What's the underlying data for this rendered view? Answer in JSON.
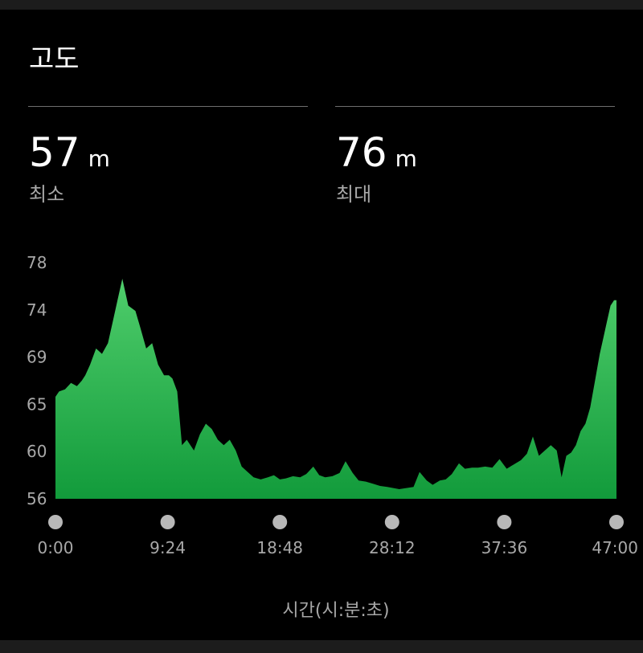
{
  "title": "고도",
  "stats": {
    "min": {
      "value": "57",
      "unit": "m",
      "label": "최소"
    },
    "max": {
      "value": "76",
      "unit": "m",
      "label": "최대"
    }
  },
  "colors": {
    "background": "#000000",
    "area_top": "#4fcd6b",
    "area_bottom": "#129b3b",
    "divider": "#6e6e6e",
    "dot": "#b8b8b8",
    "label": "#a8a8a8"
  },
  "chart_data": {
    "type": "area",
    "xlabel": "시간(시:분:초)",
    "ylabel": "",
    "title": "",
    "ylim": [
      56,
      78
    ],
    "xlim": [
      0,
      47
    ],
    "y_ticks": [
      "78",
      "74",
      "69",
      "65",
      "60",
      "56"
    ],
    "x_ticks": [
      "0:00",
      "9:24",
      "18:48",
      "28:12",
      "37:36",
      "47:00"
    ],
    "x": [
      0,
      0.3,
      0.8,
      1.3,
      1.8,
      2.2,
      2.5,
      2.9,
      3.4,
      3.9,
      4.4,
      4.8,
      5.2,
      5.6,
      6.1,
      6.7,
      7.1,
      7.6,
      8.1,
      8.6,
      9.1,
      9.5,
      9.8,
      10.2,
      10.6,
      11.0,
      11.6,
      12.1,
      12.6,
      13.1,
      13.6,
      14.1,
      14.6,
      15.1,
      15.6,
      16.1,
      16.6,
      17.2,
      17.8,
      18.3,
      18.8,
      19.3,
      19.9,
      20.5,
      21.0,
      21.6,
      22.1,
      22.6,
      23.2,
      23.8,
      24.3,
      24.9,
      25.4,
      26.0,
      26.6,
      27.2,
      27.8,
      28.3,
      28.8,
      29.4,
      30.0,
      30.5,
      31.1,
      31.6,
      32.2,
      32.7,
      33.2,
      33.8,
      34.3,
      34.9,
      35.4,
      36.0,
      36.6,
      37.2,
      37.8,
      38.4,
      39.0,
      39.5,
      40.0,
      40.5,
      41.0,
      41.5,
      42.0,
      42.4,
      42.8,
      43.2,
      43.6,
      44.0,
      44.4,
      44.8,
      45.2,
      45.6,
      45.9,
      46.2,
      46.5,
      46.8,
      47.0
    ],
    "y": [
      65.5,
      66.0,
      66.2,
      66.8,
      66.5,
      67.0,
      67.5,
      68.5,
      70.0,
      69.5,
      70.5,
      72.5,
      74.5,
      76.5,
      74.0,
      73.5,
      72.0,
      70.0,
      70.5,
      68.5,
      67.5,
      67.5,
      67.2,
      66.0,
      61.0,
      61.5,
      60.5,
      62.0,
      63.0,
      62.5,
      61.5,
      61.0,
      61.5,
      60.5,
      59.0,
      58.5,
      58.0,
      57.8,
      58.0,
      58.2,
      57.8,
      57.9,
      58.1,
      58.0,
      58.3,
      59.0,
      58.2,
      58.0,
      58.1,
      58.4,
      59.5,
      58.4,
      57.7,
      57.6,
      57.4,
      57.2,
      57.1,
      57.0,
      56.9,
      57.0,
      57.1,
      58.5,
      57.7,
      57.3,
      57.7,
      57.8,
      58.3,
      59.3,
      58.8,
      58.9,
      58.9,
      59.0,
      58.9,
      59.7,
      58.8,
      59.2,
      59.6,
      60.2,
      61.8,
      60.0,
      60.5,
      61.0,
      60.5,
      58.0,
      60.0,
      60.3,
      61.0,
      62.3,
      63.0,
      64.5,
      67.0,
      69.5,
      71.0,
      72.5,
      74.0,
      74.5,
      74.5
    ]
  }
}
